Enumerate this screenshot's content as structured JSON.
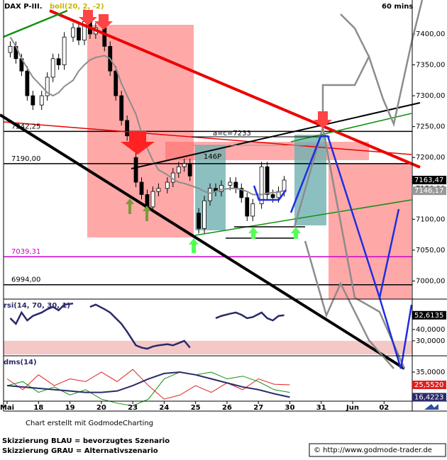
{
  "chart_data": [
    {
      "type": "candlestick",
      "title": "DAX P-III.",
      "timeframe": "60 mins",
      "overlay": {
        "name": "boll(20, 2, -2)",
        "color": "#8c8c8c",
        "values": [
          7395,
          7380,
          7360,
          7345,
          7330,
          7315,
          7305,
          7300,
          7305,
          7315,
          7325,
          7340,
          7350,
          7358,
          7362,
          7365,
          7360,
          7345,
          7320,
          7300,
          7270,
          7240,
          7215,
          7195,
          7180,
          7172,
          7165,
          7160,
          7158,
          7155,
          7150,
          7145,
          7142,
          7145,
          7148,
          7150,
          7150,
          7148,
          7145,
          7140,
          7140,
          7142,
          7143,
          7144,
          7146.17
        ],
        "last_label": "7146,17"
      },
      "x": [
        0.1,
        0.28,
        0.46,
        0.64,
        0.82,
        1.1,
        1.28,
        1.46,
        1.64,
        1.82,
        2.1,
        2.28,
        2.46,
        2.64,
        2.82,
        3.1,
        3.28,
        3.46,
        3.64,
        3.82,
        4.1,
        4.28,
        4.46,
        4.64,
        4.82,
        5.1,
        5.28,
        5.46,
        5.64,
        5.82,
        6.1,
        6.28,
        6.46,
        6.64,
        6.82,
        7.1,
        7.28,
        7.46,
        7.64,
        7.82,
        8.1,
        8.28,
        8.46,
        8.64,
        8.82
      ],
      "open": [
        7370,
        7380,
        7360,
        7340,
        7300,
        7285,
        7300,
        7330,
        7360,
        7350,
        7395,
        7410,
        7390,
        7420,
        7400,
        7410,
        7380,
        7340,
        7300,
        7260,
        7200,
        7160,
        7140,
        7120,
        7145,
        7150,
        7160,
        7175,
        7185,
        7190,
        7110,
        7085,
        7130,
        7150,
        7145,
        7155,
        7160,
        7150,
        7135,
        7105,
        7125,
        7185,
        7140,
        7135,
        7145
      ],
      "high": [
        7388,
        7388,
        7368,
        7348,
        7308,
        7308,
        7338,
        7368,
        7368,
        7403,
        7418,
        7418,
        7440,
        7428,
        7418,
        7418,
        7388,
        7348,
        7308,
        7268,
        7208,
        7168,
        7148,
        7153,
        7158,
        7168,
        7183,
        7193,
        7198,
        7198,
        7118,
        7138,
        7158,
        7158,
        7163,
        7168,
        7168,
        7158,
        7143,
        7133,
        7193,
        7193,
        7148,
        7153,
        7170
      ],
      "low": [
        7362,
        7352,
        7332,
        7292,
        7277,
        7277,
        7292,
        7322,
        7342,
        7342,
        7387,
        7382,
        7382,
        7392,
        7392,
        7372,
        7332,
        7292,
        7252,
        7227,
        7152,
        7132,
        7110,
        7112,
        7137,
        7142,
        7152,
        7167,
        7177,
        7162,
        7077,
        7077,
        7122,
        7137,
        7137,
        7147,
        7142,
        7127,
        7097,
        7097,
        7117,
        7132,
        7127,
        7127,
        7137
      ],
      "close": [
        7380,
        7360,
        7340,
        7300,
        7285,
        7300,
        7330,
        7360,
        7350,
        7395,
        7410,
        7390,
        7420,
        7400,
        7410,
        7380,
        7340,
        7300,
        7260,
        7235,
        7160,
        7140,
        7120,
        7145,
        7150,
        7160,
        7175,
        7185,
        7190,
        7170,
        7085,
        7130,
        7150,
        7145,
        7155,
        7160,
        7150,
        7135,
        7105,
        7125,
        7185,
        7140,
        7135,
        7145,
        7163.47
      ],
      "last_label": "7163,47",
      "levels": [
        {
          "value": 7242.25,
          "label": "7242,25",
          "color": "#000000"
        },
        {
          "value": 7190,
          "label": "7190,00",
          "color": "#000000"
        },
        {
          "value": 7039.31,
          "label": "7039,31",
          "color": "#cc00cc"
        },
        {
          "value": 6994,
          "label": "6994,00",
          "color": "#000000"
        }
      ],
      "annotations": [
        "a=c=7233",
        "146P"
      ],
      "ylim": [
        6973,
        7455
      ],
      "yticks": [
        {
          "value": 7400,
          "label": "7400,00"
        },
        {
          "value": 7350,
          "label": "7350,00"
        },
        {
          "value": 7300,
          "label": "7300,00"
        },
        {
          "value": 7250,
          "label": "7250,00"
        },
        {
          "value": 7200,
          "label": "7200,00"
        },
        {
          "value": 7150,
          "label": "7150,00"
        },
        {
          "value": 7100,
          "label": "7100,00"
        },
        {
          "value": 7050,
          "label": "7050,00"
        },
        {
          "value": 7000,
          "label": "7000,00"
        }
      ],
      "xlim": [
        -0.1,
        13.1
      ],
      "xticks": [
        {
          "value": 0,
          "label": "Mai"
        },
        {
          "value": 1,
          "label": "18"
        },
        {
          "value": 2,
          "label": "19"
        },
        {
          "value": 3,
          "label": "20"
        },
        {
          "value": 4,
          "label": "23"
        },
        {
          "value": 5,
          "label": "24"
        },
        {
          "value": 6,
          "label": "25"
        },
        {
          "value": 7,
          "label": "26"
        },
        {
          "value": 8,
          "label": "27"
        },
        {
          "value": 9,
          "label": "30"
        },
        {
          "value": 10,
          "label": "31"
        },
        {
          "value": 11,
          "label": "Jun"
        },
        {
          "value": 12,
          "label": "02"
        }
      ]
    },
    {
      "type": "line",
      "title": "rsi(14, 70, 30, 1)",
      "series": [
        {
          "color": "#2a2a6a",
          "values": [
            50,
            45,
            55,
            48,
            52,
            55,
            58,
            60,
            57,
            62,
            63,
            null,
            null,
            60,
            62,
            58,
            55,
            50,
            45,
            38,
            26,
            24,
            23,
            25,
            26,
            27,
            26,
            28,
            30,
            24,
            null,
            null,
            null,
            50,
            52,
            54,
            55,
            53,
            50,
            51,
            55,
            50,
            48,
            52,
            52.6135
          ],
          "last_label": "52,6135"
        }
      ],
      "zone": 30,
      "ylim": [
        18,
        65
      ],
      "yticks": [
        {
          "value": 40,
          "label": "40,0000"
        },
        {
          "value": 30,
          "label": "30,0000"
        }
      ]
    },
    {
      "type": "line",
      "title": "dms(14)",
      "x": [
        0,
        0.5,
        1,
        1.5,
        2,
        2.5,
        3,
        3.5,
        4,
        4.5,
        5,
        5.5,
        6,
        6.5,
        7,
        7.5,
        8,
        8.5,
        9
      ],
      "series": [
        {
          "color": "#e02020",
          "values": [
            30,
            22,
            33,
            25,
            30,
            28,
            35,
            28,
            37,
            25,
            15,
            18,
            25,
            20,
            27,
            22,
            30,
            26,
            25.552
          ],
          "last_label": "25,5520"
        },
        {
          "color": "#109010",
          "values": [
            25,
            28,
            20,
            24,
            18,
            22,
            15,
            12,
            10,
            15,
            30,
            35,
            33,
            35,
            30,
            32,
            28,
            22,
            20
          ]
        },
        {
          "color": "#2a2a6a",
          "values": [
            25,
            24,
            23,
            22,
            21,
            20,
            20,
            21,
            25,
            30,
            34,
            35,
            33,
            30,
            27,
            24,
            22,
            19,
            16.4223
          ],
          "last_label": "16,4223"
        }
      ],
      "ylim": [
        14,
        45.5
      ],
      "yticks": [
        {
          "value": 35,
          "label": "35,0000"
        }
      ]
    }
  ],
  "footer": {
    "credit": "Chart erstellt mit GodmodeCharting",
    "blue": "Skizzierung BLAU = bevorzugtes Szenario",
    "gray": "Skizzierung GRAU = Alternativszenario",
    "url": "© http://www.godmode-trader.de"
  }
}
